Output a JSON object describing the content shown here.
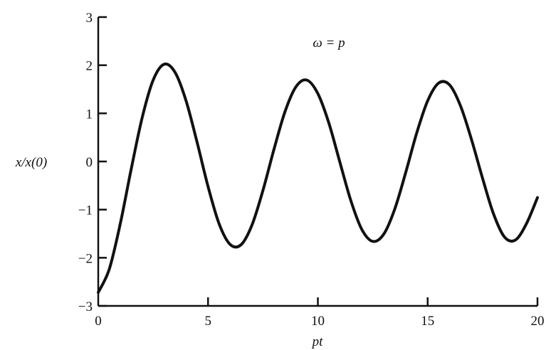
{
  "chart_data": {
    "type": "line",
    "title": "",
    "annotation": "ω = p",
    "xlabel": "pt",
    "ylabel": "x/x(0)",
    "xlim": [
      0,
      20
    ],
    "ylim": [
      -3,
      3
    ],
    "grid": false,
    "x_ticks": [
      0,
      5,
      10,
      15,
      20
    ],
    "x_tick_labels": [
      "0",
      "5",
      "10",
      "15",
      "20"
    ],
    "y_ticks": [
      3,
      2,
      1,
      0,
      -1,
      -2,
      -3
    ],
    "y_tick_labels": [
      "3",
      "2",
      "1",
      "0",
      "−1",
      "−2",
      "−3"
    ],
    "line_color": "#111111",
    "series": [
      {
        "x": [
          0,
          0.5,
          1,
          1.5,
          2,
          2.5,
          3,
          3.5,
          4,
          4.5,
          5,
          5.5,
          6,
          6.5,
          7,
          7.5,
          8,
          8.5,
          9,
          9.5,
          10,
          10.5,
          11,
          11.5,
          12,
          12.5,
          13,
          13.5,
          14,
          14.5,
          15,
          15.5,
          16,
          16.5,
          17,
          17.5,
          18,
          18.5,
          19,
          19.5,
          20
        ],
        "y": [
          -2.72,
          -2.24,
          -1.3,
          -0.16,
          0.91,
          1.69,
          2.02,
          1.85,
          1.26,
          0.4,
          -0.52,
          -1.29,
          -1.72,
          -1.73,
          -1.32,
          -0.6,
          0.25,
          1.03,
          1.55,
          1.69,
          1.41,
          0.8,
          -0.01,
          -0.81,
          -1.41,
          -1.66,
          -1.51,
          -0.99,
          -0.23,
          0.59,
          1.26,
          1.63,
          1.59,
          1.15,
          0.45,
          -0.35,
          -1.09,
          -1.57,
          -1.63,
          -1.29,
          -0.75
        ]
      }
    ]
  }
}
